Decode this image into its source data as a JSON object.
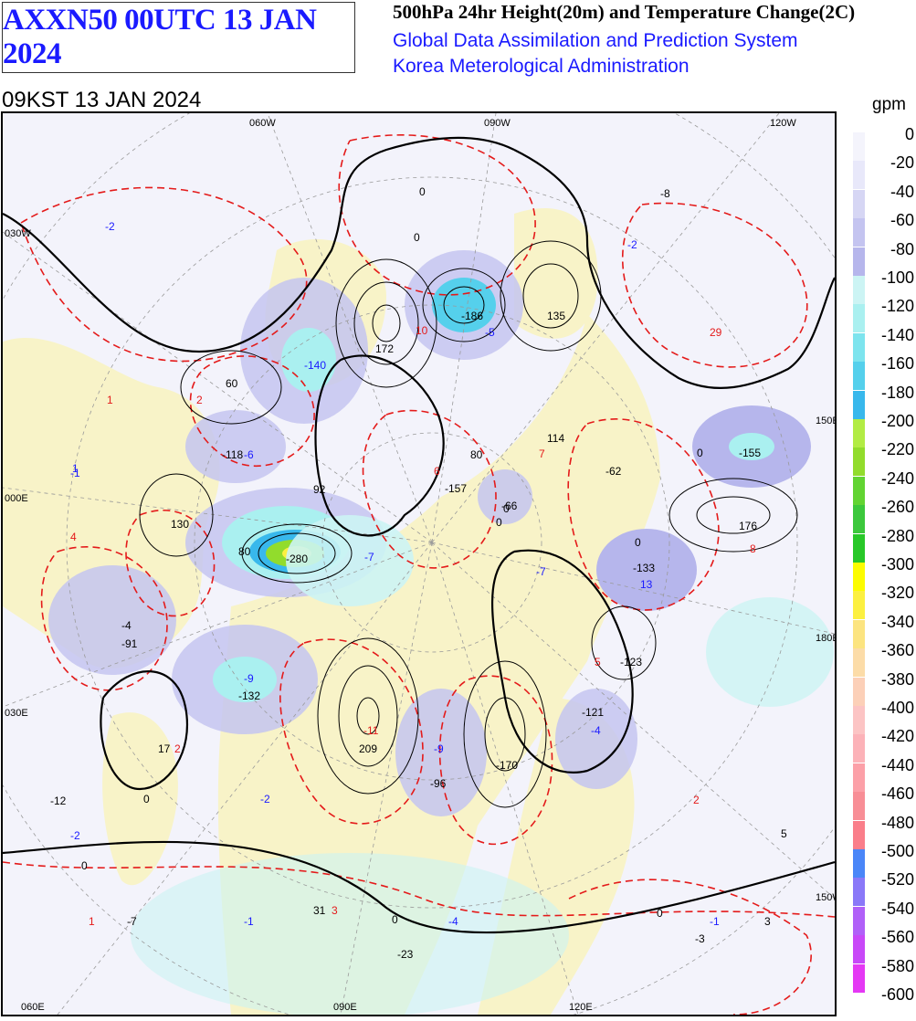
{
  "header": {
    "title": "AXXN50 00UTC 13 JAN 2024",
    "subtitle_lines": [
      "500hPa 24hr Height(20m) and Temperature Change(2C)",
      "Global Data Assimilation and Prediction System",
      "Korea Meterological Administration"
    ],
    "valid_time": "09KST 13 JAN 2024"
  },
  "legend": {
    "unit": "gpm",
    "levels": [
      "0",
      "-20",
      "-40",
      "-60",
      "-80",
      "-100",
      "-120",
      "-140",
      "-160",
      "-180",
      "-200",
      "-220",
      "-240",
      "-260",
      "-280",
      "-300",
      "-320",
      "-340",
      "-360",
      "-380",
      "-400",
      "-420",
      "-440",
      "-460",
      "-480",
      "-500",
      "-520",
      "-540",
      "-560",
      "-580",
      "-600"
    ],
    "colors": [
      "#f4f4fc",
      "#e8e8fa",
      "#d6d6f4",
      "#c4c4f0",
      "#b6b6ec",
      "#ccf4f4",
      "#aaf0f0",
      "#7de4ee",
      "#55d0ec",
      "#38b8ec",
      "#b2ec44",
      "#92dc2c",
      "#62d432",
      "#3cc83c",
      "#28c828",
      "#fcfc00",
      "#fcf040",
      "#fce480",
      "#fcdca8",
      "#fcd0b8",
      "#fcc4c4",
      "#fcb2b8",
      "#fca0a8",
      "#f88e96",
      "#fa7e8a",
      "#4a86f8",
      "#8a78f8",
      "#b060f8",
      "#c848f8",
      "#e438f4"
    ]
  },
  "map": {
    "longitude_labels": [
      "060W",
      "090W",
      "120W",
      "060E",
      "090E",
      "120E"
    ],
    "latitude_labels": [
      "030W",
      "150W",
      "180E",
      "150E",
      "030E",
      "000E"
    ],
    "height_labels": [
      "-8",
      "-2",
      "-2",
      "2",
      "1",
      "1",
      "60",
      "-140",
      "172",
      "10",
      "-186",
      "-5",
      "135",
      "29",
      "-118",
      "-6",
      "92",
      "6",
      "-157",
      "114",
      "7",
      "-62",
      "-66",
      "-155",
      "-1",
      "130",
      "4",
      "80",
      "80",
      "8",
      "-280",
      "-7",
      "-7",
      "-133",
      "13",
      "176",
      "-4",
      "-91",
      "-123",
      "5",
      "-9",
      "-132",
      "-11",
      "209",
      "-9",
      "-96",
      "-170",
      "-121",
      "-4",
      "17",
      "2",
      "-12",
      "-2",
      "-2",
      "2",
      "5",
      "1",
      "-7",
      "31",
      "3",
      "-1",
      "-4",
      "-1",
      "-3",
      "3",
      "-23",
      "0",
      "0",
      "0",
      "0",
      "0",
      "0",
      "0",
      "0",
      "0",
      "0"
    ],
    "height_change_highs": [
      {
        "label": "172",
        "value": 172
      },
      {
        "label": "135",
        "value": 135
      },
      {
        "label": "114",
        "value": 114
      },
      {
        "label": "130",
        "value": 130
      },
      {
        "label": "60",
        "value": 60
      },
      {
        "label": "92",
        "value": 92
      },
      {
        "label": "176",
        "value": 176
      },
      {
        "label": "209",
        "value": 209
      },
      {
        "label": "17",
        "value": 17
      },
      {
        "label": "31",
        "value": 31
      },
      {
        "label": "5",
        "value": 5
      },
      {
        "label": "3",
        "value": 3
      }
    ],
    "height_change_lows": [
      {
        "label": "-140",
        "value": -140
      },
      {
        "label": "-186",
        "value": -186
      },
      {
        "label": "-118",
        "value": -118
      },
      {
        "label": "-280",
        "value": -280
      },
      {
        "label": "-157",
        "value": -157
      },
      {
        "label": "-62",
        "value": -62
      },
      {
        "label": "-66",
        "value": -66
      },
      {
        "label": "-155",
        "value": -155
      },
      {
        "label": "-133",
        "value": -133
      },
      {
        "label": "-123",
        "value": -123
      },
      {
        "label": "-91",
        "value": -91
      },
      {
        "label": "-132",
        "value": -132
      },
      {
        "label": "-96",
        "value": -96
      },
      {
        "label": "-170",
        "value": -170
      },
      {
        "label": "-121",
        "value": -121
      },
      {
        "label": "-12",
        "value": -12
      },
      {
        "label": "-8",
        "value": -8
      },
      {
        "label": "-3",
        "value": -3
      },
      {
        "label": "-23",
        "value": -23
      }
    ]
  }
}
